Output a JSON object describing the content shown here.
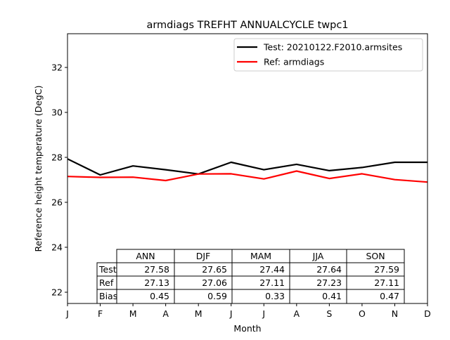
{
  "chart_data": {
    "type": "line",
    "title": "armdiags TREFHT ANNUALCYCLE twpc1",
    "xlabel": "Month",
    "ylabel": "Reference height temperature (DegC)",
    "categories": [
      "J",
      "F",
      "M",
      "A",
      "M",
      "J",
      "J",
      "A",
      "S",
      "O",
      "N",
      "D"
    ],
    "xlim": [
      0,
      11
    ],
    "ylim": [
      21.5,
      33.5
    ],
    "yticks": [
      22,
      24,
      26,
      28,
      30,
      32
    ],
    "grid": false,
    "legend_position": "top-right",
    "series": [
      {
        "name": "Test: 20210122.F2010.armsites",
        "color": "#000000",
        "values": [
          27.93,
          27.22,
          27.62,
          27.45,
          27.26,
          27.78,
          27.45,
          27.69,
          27.41,
          27.55,
          27.78,
          27.78
        ]
      },
      {
        "name": "Ref: armdiags",
        "color": "#ff0000",
        "values": [
          27.15,
          27.11,
          27.12,
          26.97,
          27.26,
          27.27,
          27.04,
          27.39,
          27.06,
          27.27,
          27.01,
          26.9
        ]
      }
    ],
    "table": {
      "columns": [
        "ANN",
        "DJF",
        "MAM",
        "JJA",
        "SON"
      ],
      "rows": [
        {
          "label": "Test",
          "values": [
            "27.58",
            "27.65",
            "27.44",
            "27.64",
            "27.59"
          ]
        },
        {
          "label": "Ref",
          "values": [
            "27.13",
            "27.06",
            "27.11",
            "27.23",
            "27.11"
          ]
        },
        {
          "label": "Bias",
          "values": [
            "0.45",
            "0.59",
            "0.33",
            "0.41",
            "0.47"
          ]
        }
      ]
    }
  }
}
